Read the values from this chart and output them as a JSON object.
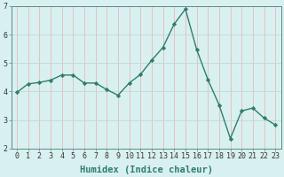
{
  "x": [
    0,
    1,
    2,
    3,
    4,
    5,
    6,
    7,
    8,
    9,
    10,
    11,
    12,
    13,
    14,
    15,
    16,
    17,
    18,
    19,
    20,
    21,
    22,
    23
  ],
  "y": [
    3.97,
    4.27,
    4.32,
    4.4,
    4.58,
    4.58,
    4.3,
    4.3,
    4.07,
    3.87,
    4.3,
    4.6,
    5.1,
    5.55,
    6.37,
    6.9,
    5.48,
    4.42,
    3.53,
    2.35,
    3.32,
    3.42,
    3.07,
    2.83
  ],
  "line_color": "#2e7d6e",
  "marker": "D",
  "marker_size": 2.2,
  "linewidth": 1.0,
  "bg_color": "#d9f0f0",
  "grid_color_major": "#c0d8d8",
  "grid_color_minor": "#e8b8b8",
  "xlabel": "Humidex (Indice chaleur)",
  "xlabel_fontsize": 7.5,
  "xlabel_fontweight": "bold",
  "ylim": [
    2,
    7
  ],
  "xlim": [
    -0.5,
    23.5
  ],
  "yticks": [
    2,
    3,
    4,
    5,
    6,
    7
  ],
  "xticks": [
    0,
    1,
    2,
    3,
    4,
    5,
    6,
    7,
    8,
    9,
    10,
    11,
    12,
    13,
    14,
    15,
    16,
    17,
    18,
    19,
    20,
    21,
    22,
    23
  ],
  "tick_fontsize": 6.0,
  "spine_color": "#5a8a8a"
}
